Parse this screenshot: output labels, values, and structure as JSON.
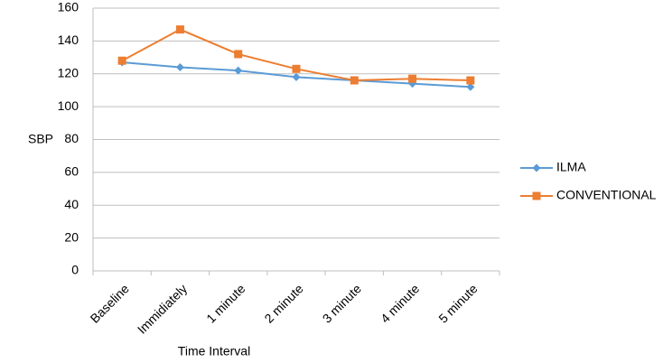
{
  "chart_data": {
    "type": "line",
    "y_label": "SBP",
    "x_label": "Time Interval",
    "categories": [
      "Baseline",
      "Immidiately",
      "1 minute",
      "2 minute",
      "3 minute",
      "4 minute",
      "5 minute"
    ],
    "series": [
      {
        "name": "ILMA",
        "color": "#5b9bd5",
        "marker": "diamond",
        "values": [
          127,
          124,
          122,
          118,
          116,
          114,
          112
        ]
      },
      {
        "name": "CONVENTIONAL",
        "color": "#ed7d31",
        "marker": "square",
        "values": [
          128,
          147,
          132,
          123,
          116,
          117,
          116
        ]
      }
    ],
    "ylim": [
      0,
      160
    ],
    "yticks": [
      0,
      20,
      40,
      60,
      80,
      100,
      120,
      140,
      160
    ],
    "grid": true,
    "legend": "right"
  }
}
